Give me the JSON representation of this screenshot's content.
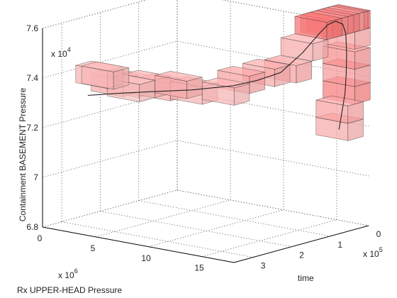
{
  "chart_data": {
    "type": "scatter3d",
    "title": "",
    "xlabel": "Rx UPPER-HEAD Pressure",
    "ylabel": "time",
    "zlabel": "Containment BASEMENT Pressure",
    "x_multiplier": "x 10",
    "x_exponent": "6",
    "y_multiplier": "x 10",
    "y_exponent": "5",
    "z_multiplier": "x 10",
    "z_exponent": "4",
    "x_ticks": [
      "0",
      "5",
      "10",
      "15"
    ],
    "y_ticks": [
      "0",
      "1",
      "2",
      "3"
    ],
    "z_ticks": [
      "6.8",
      "7",
      "7.2",
      "7.4",
      "7.6"
    ],
    "xlim": [
      0,
      18000000
    ],
    "ylim": [
      0,
      350000
    ],
    "zlim": [
      68000,
      76000
    ],
    "grid": true,
    "cube_color": "#ff3a3a",
    "cube_edge_color": "#333333",
    "cells": [
      {
        "x": 3000000,
        "y": 270000,
        "z": 74000,
        "level": 0.35
      },
      {
        "x": 1000000,
        "y": 230000,
        "z": 73700,
        "level": 0.35
      },
      {
        "x": 4000000,
        "y": 230000,
        "z": 73400,
        "level": 0.3
      },
      {
        "x": 1000000,
        "y": 190000,
        "z": 73200,
        "level": 0.4
      },
      {
        "x": 4000000,
        "y": 190000,
        "z": 73400,
        "level": 0.35
      },
      {
        "x": 7000000,
        "y": 190000,
        "z": 73600,
        "level": 0.4
      },
      {
        "x": 1000000,
        "y": 150000,
        "z": 73000,
        "level": 0.35
      },
      {
        "x": 4000000,
        "y": 150000,
        "z": 73100,
        "level": 0.4
      },
      {
        "x": 7000000,
        "y": 150000,
        "z": 73200,
        "level": 0.35
      },
      {
        "x": 10000000,
        "y": 150000,
        "z": 73400,
        "level": 0.35
      },
      {
        "x": 10000000,
        "y": 110000,
        "z": 73700,
        "level": 0.45
      },
      {
        "x": 12000000,
        "y": 100000,
        "z": 74100,
        "level": 0.4
      },
      {
        "x": 13500000,
        "y": 85000,
        "z": 74300,
        "level": 0.45
      },
      {
        "x": 14500000,
        "y": 70000,
        "z": 75200,
        "level": 0.4
      },
      {
        "x": 16000000,
        "y": 75000,
        "z": 76200,
        "level": 0.7
      },
      {
        "x": 16000000,
        "y": 60000,
        "z": 76200,
        "level": 0.55
      },
      {
        "x": 16000000,
        "y": 45000,
        "z": 76200,
        "level": 0.6
      },
      {
        "x": 16000000,
        "y": 30000,
        "z": 76200,
        "level": 0.65
      },
      {
        "x": 16000000,
        "y": 18000,
        "z": 76200,
        "level": 0.45
      },
      {
        "x": 16000000,
        "y": 8000,
        "z": 76200,
        "level": 0.6
      },
      {
        "x": 16000000,
        "y": 2000,
        "z": 76200,
        "level": 0.8
      },
      {
        "x": 16000000,
        "y": 2000,
        "z": 75500,
        "level": 0.45
      },
      {
        "x": 16000000,
        "y": 2000,
        "z": 74700,
        "level": 0.55
      },
      {
        "x": 16000000,
        "y": 2000,
        "z": 74000,
        "level": 0.5
      },
      {
        "x": 16000000,
        "y": 2000,
        "z": 73300,
        "level": 0.65
      },
      {
        "x": 16000000,
        "y": 20000,
        "z": 72600,
        "level": 0.45
      },
      {
        "x": 16000000,
        "y": 20000,
        "z": 71900,
        "level": 0.4
      }
    ],
    "trajectory": [
      {
        "x": 1000000,
        "y": 260000,
        "z": 73000
      },
      {
        "x": 3000000,
        "y": 240000,
        "z": 73150
      },
      {
        "x": 5000000,
        "y": 210000,
        "z": 73250
      },
      {
        "x": 7500000,
        "y": 170000,
        "z": 73350
      },
      {
        "x": 10000000,
        "y": 130000,
        "z": 73550
      },
      {
        "x": 11500000,
        "y": 110000,
        "z": 73800
      },
      {
        "x": 13000000,
        "y": 90000,
        "z": 74150
      },
      {
        "x": 14500000,
        "y": 75000,
        "z": 75000
      },
      {
        "x": 16000000,
        "y": 72000,
        "z": 75900
      },
      {
        "x": 16000000,
        "y": 50000,
        "z": 76150
      },
      {
        "x": 16000000,
        "y": 30000,
        "z": 76200
      },
      {
        "x": 16000000,
        "y": 12000,
        "z": 76000
      },
      {
        "x": 16000000,
        "y": 4000,
        "z": 75600
      },
      {
        "x": 16000000,
        "y": 2000,
        "z": 74800
      },
      {
        "x": 16000000,
        "y": 3000,
        "z": 74000
      },
      {
        "x": 16000000,
        "y": 6000,
        "z": 73200
      },
      {
        "x": 16000000,
        "y": 15000,
        "z": 72400
      },
      {
        "x": 16000000,
        "y": 22000,
        "z": 71800
      }
    ]
  }
}
